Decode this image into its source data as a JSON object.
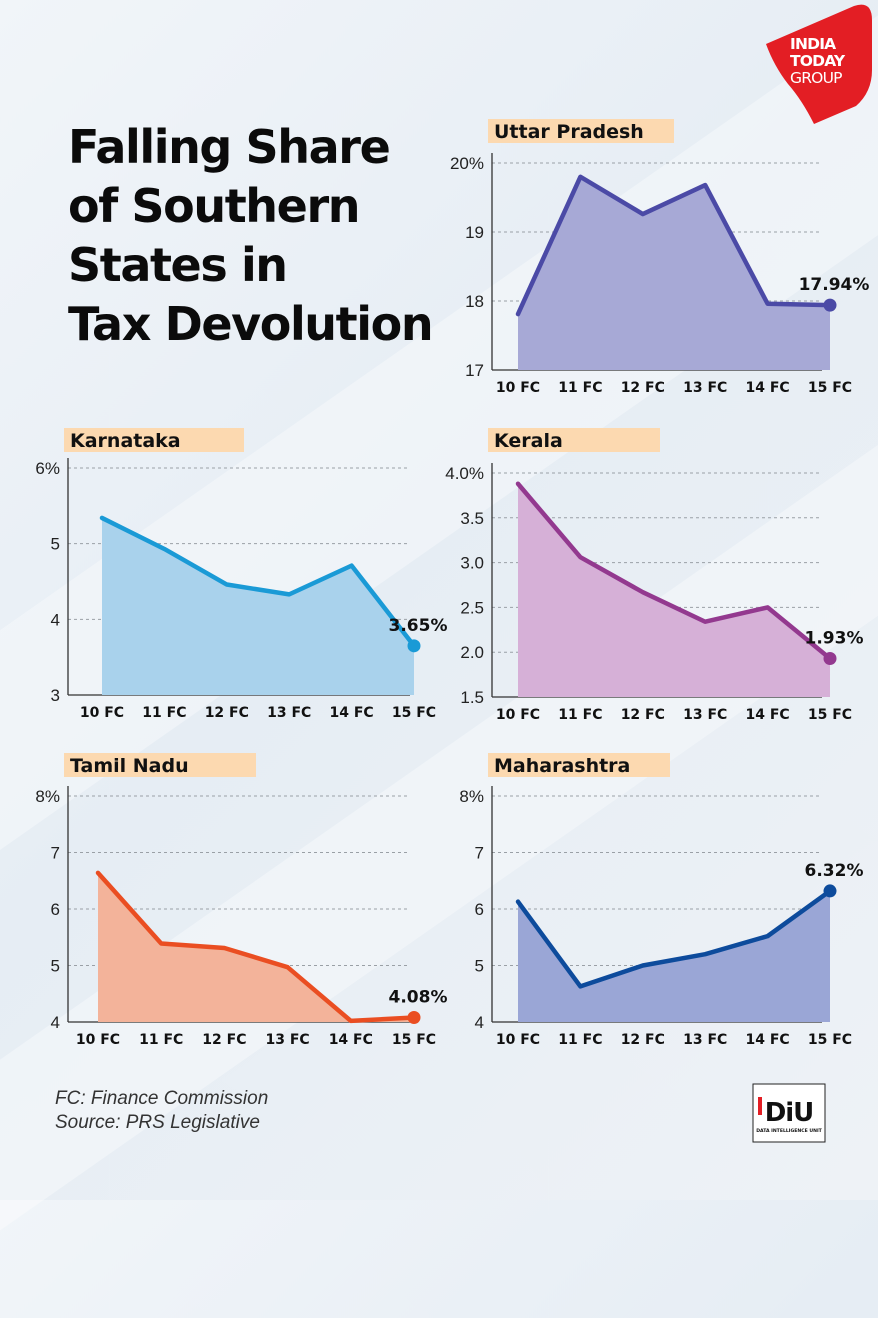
{
  "title_lines": [
    "Falling Share",
    "of Southern",
    "States in",
    "Tax Devolution"
  ],
  "brand": {
    "line1": "INDIA",
    "line2": "TODAY",
    "line3": "GROUP",
    "color": "#e31e24"
  },
  "footnote": {
    "line1": "FC: Finance Commission",
    "line2": "Source: PRS Legislative"
  },
  "diu_logo": {
    "text": "DiU",
    "subtext": "DATA INTELLIGENCE UNIT"
  },
  "chart_data": [
    {
      "type": "area",
      "title": "Uttar Pradesh",
      "categories": [
        "10 FC",
        "11 FC",
        "12 FC",
        "13 FC",
        "14 FC",
        "15 FC"
      ],
      "values": [
        17.81,
        19.8,
        19.26,
        19.68,
        17.96,
        17.94
      ],
      "yticks": [
        "17",
        "18",
        "19",
        "20%"
      ],
      "ylim": [
        17,
        20
      ],
      "last_label": "17.94%",
      "color": "#4b4aa6",
      "fill": "#a7a9d6"
    },
    {
      "type": "area",
      "title": "Karnataka",
      "categories": [
        "10 FC",
        "11 FC",
        "12 FC",
        "13 FC",
        "14 FC",
        "15 FC"
      ],
      "values": [
        5.34,
        4.93,
        4.46,
        4.33,
        4.71,
        3.65
      ],
      "yticks": [
        "3",
        "4",
        "5",
        "6%"
      ],
      "ylim": [
        3,
        6
      ],
      "last_label": "3.65%",
      "color": "#1a9ad6",
      "fill": "#a9d2ec"
    },
    {
      "type": "area",
      "title": "Kerala",
      "categories": [
        "10 FC",
        "11 FC",
        "12 FC",
        "13 FC",
        "14 FC",
        "15 FC"
      ],
      "values": [
        3.88,
        3.06,
        2.67,
        2.34,
        2.5,
        1.93
      ],
      "yticks": [
        "1.5",
        "2.0",
        "2.5",
        "3.0",
        "3.5",
        "4.0%"
      ],
      "ylim": [
        1.5,
        4.0
      ],
      "last_label": "1.93%",
      "color": "#93398f",
      "fill": "#d6b0d7"
    },
    {
      "type": "area",
      "title": "Tamil Nadu",
      "categories": [
        "10 FC",
        "11 FC",
        "12 FC",
        "13 FC",
        "14 FC",
        "15 FC"
      ],
      "values": [
        6.64,
        5.39,
        5.31,
        4.97,
        4.02,
        4.08
      ],
      "yticks": [
        "4",
        "5",
        "6",
        "7",
        "8%"
      ],
      "ylim": [
        4,
        8
      ],
      "last_label": "4.08%",
      "color": "#ea4e22",
      "fill": "#f3b39a"
    },
    {
      "type": "line",
      "title": "Maharashtra",
      "categories": [
        "10 FC",
        "11 FC",
        "12 FC",
        "13 FC",
        "14 FC",
        "15 FC"
      ],
      "values": [
        6.13,
        4.63,
        5.0,
        5.2,
        5.52,
        6.32
      ],
      "yticks": [
        "4",
        "5",
        "6",
        "7",
        "8%"
      ],
      "ylim": [
        4,
        8
      ],
      "last_label": "6.32%",
      "color": "#0d4b9c",
      "fill": "#9aa6d6"
    }
  ]
}
